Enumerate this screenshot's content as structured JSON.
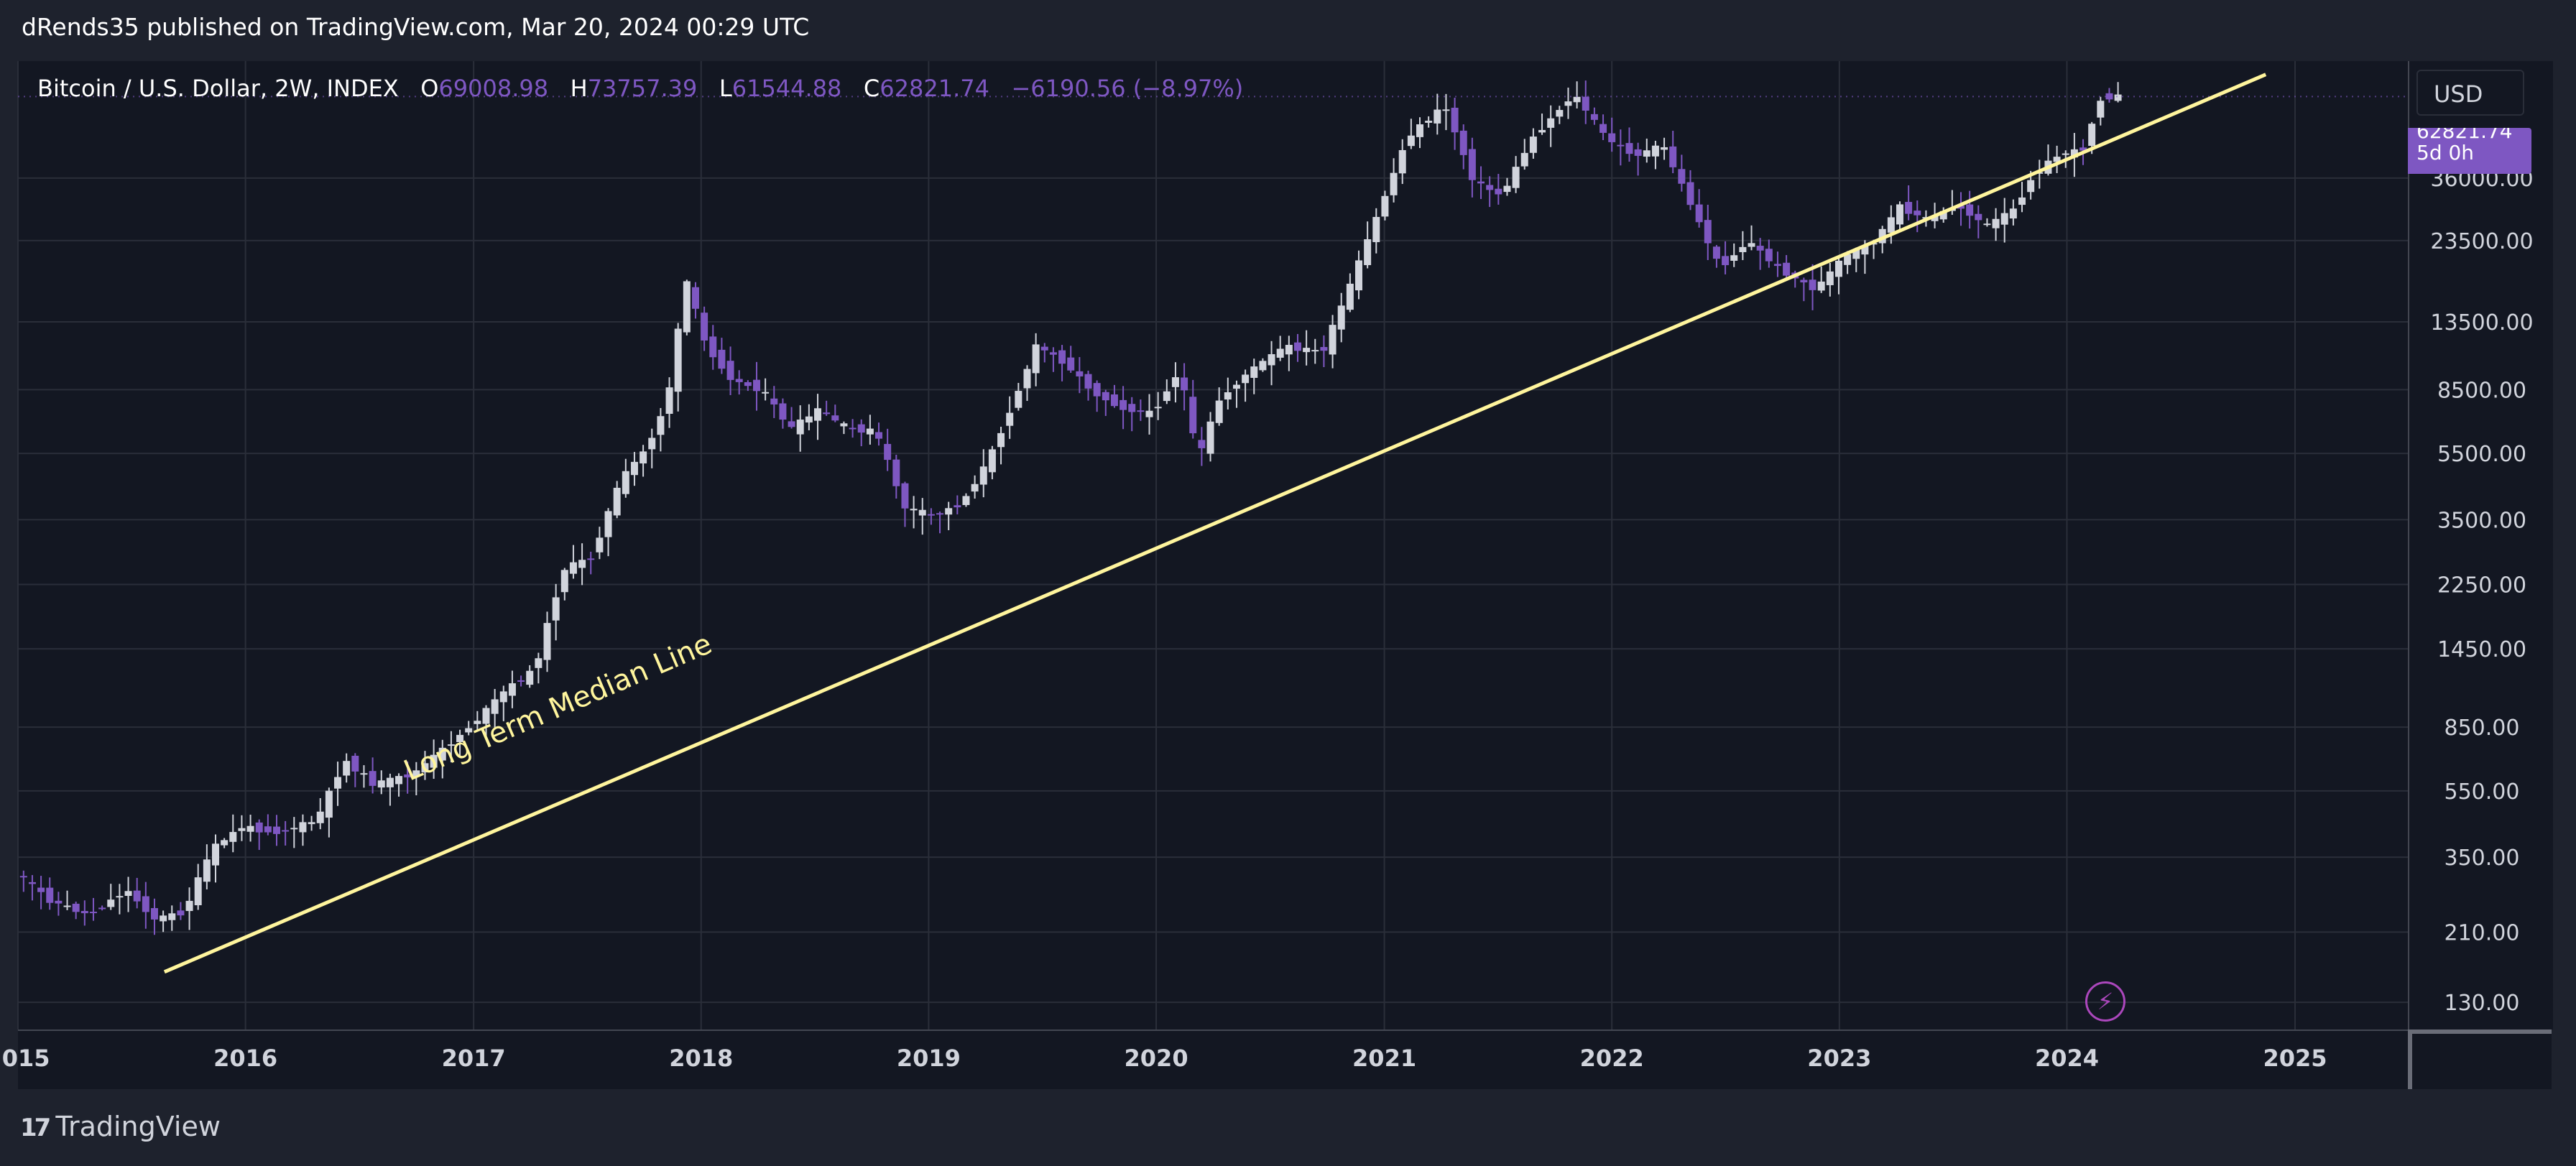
{
  "header": {
    "publisher": "dRends35 published on TradingView.com, Mar 20, 2024 00:29 UTC"
  },
  "legend": {
    "symbol": "Bitcoin / U.S. Dollar, 2W, INDEX",
    "o_label": "O",
    "o_value": "69008.98",
    "h_label": "H",
    "h_value": "73757.39",
    "l_label": "L",
    "l_value": "61544.88",
    "c_label": "C",
    "c_value": "62821.74",
    "change": "−6190.56 (−8.97%)"
  },
  "price_axis": {
    "currency": "USD",
    "current_price": "62821.74",
    "countdown": "5d 0h"
  },
  "footer": {
    "brand": "TradingView",
    "brand_mark": "17"
  },
  "colors": {
    "background": "#131722",
    "panel": "#1e222d",
    "grid": "#2a2e39",
    "up_candle": "#d1d4dc",
    "down_candle": "#7e57c2",
    "median_line": "#fff59d",
    "price_tag": "#7e57c2"
  },
  "icons": {
    "alert": "lightning-bolt-icon"
  },
  "chart_data": {
    "type": "candlestick",
    "title": "Bitcoin / U.S. Dollar, 2W, INDEX",
    "y_scale": "log",
    "y_ticks": [
      130,
      210,
      350,
      550,
      850,
      1450,
      2250,
      3500,
      5500,
      8500,
      13500,
      23500,
      36000
    ],
    "y_tick_labels": [
      "130.00",
      "210.00",
      "350.00",
      "550.00",
      "850.00",
      "1450.00",
      "2250.00",
      "3500.00",
      "5500.00",
      "8500.00",
      "13500.00",
      "23500.00",
      "36000.00"
    ],
    "x_ticks": [
      "2015",
      "2016",
      "2017",
      "2018",
      "2019",
      "2020",
      "2021",
      "2022",
      "2023",
      "2024",
      "2025"
    ],
    "x_range": [
      "2015-01-01",
      "2025-07-01"
    ],
    "grid": true,
    "series": [
      {
        "kind": "price",
        "points": [
          [
            "2015-01-01",
            320
          ],
          [
            "2015-03-01",
            260
          ],
          [
            "2015-05-01",
            236
          ],
          [
            "2015-07-01",
            280
          ],
          [
            "2015-08-15",
            230
          ],
          [
            "2015-10-01",
            240
          ],
          [
            "2015-11-15",
            370
          ],
          [
            "2016-01-01",
            430
          ],
          [
            "2016-03-01",
            415
          ],
          [
            "2016-05-01",
            450
          ],
          [
            "2016-06-15",
            680
          ],
          [
            "2016-08-01",
            575
          ],
          [
            "2016-10-01",
            615
          ],
          [
            "2016-12-01",
            760
          ],
          [
            "2017-01-15",
            900
          ],
          [
            "2017-03-01",
            1100
          ],
          [
            "2017-04-15",
            1250
          ],
          [
            "2017-06-01",
            2500
          ],
          [
            "2017-07-15",
            2700
          ],
          [
            "2017-09-01",
            4600
          ],
          [
            "2017-10-15",
            5800
          ],
          [
            "2017-11-15",
            8000
          ],
          [
            "2017-12-15",
            18000
          ],
          [
            "2018-01-15",
            11500
          ],
          [
            "2018-03-01",
            9000
          ],
          [
            "2018-04-15",
            8500
          ],
          [
            "2018-06-01",
            6500
          ],
          [
            "2018-07-15",
            7400
          ],
          [
            "2018-09-01",
            6500
          ],
          [
            "2018-10-15",
            6400
          ],
          [
            "2018-12-01",
            3800
          ],
          [
            "2019-01-15",
            3600
          ],
          [
            "2019-03-01",
            3900
          ],
          [
            "2019-04-15",
            5300
          ],
          [
            "2019-06-01",
            8500
          ],
          [
            "2019-06-30",
            11500
          ],
          [
            "2019-08-15",
            10200
          ],
          [
            "2019-10-01",
            8300
          ],
          [
            "2019-11-15",
            7500
          ],
          [
            "2020-01-01",
            7200
          ],
          [
            "2020-02-15",
            9800
          ],
          [
            "2020-03-15",
            5200
          ],
          [
            "2020-04-15",
            7800
          ],
          [
            "2020-06-01",
            9500
          ],
          [
            "2020-08-01",
            11400
          ],
          [
            "2020-10-01",
            11000
          ],
          [
            "2020-11-15",
            17500
          ],
          [
            "2020-12-31",
            29000
          ],
          [
            "2021-02-15",
            48000
          ],
          [
            "2021-04-15",
            59000
          ],
          [
            "2021-06-01",
            35000
          ],
          [
            "2021-07-15",
            32000
          ],
          [
            "2021-09-01",
            47000
          ],
          [
            "2021-11-08",
            64000
          ],
          [
            "2021-12-31",
            47000
          ],
          [
            "2022-02-15",
            42000
          ],
          [
            "2022-03-31",
            45000
          ],
          [
            "2022-05-15",
            30000
          ],
          [
            "2022-06-30",
            19500
          ],
          [
            "2022-08-15",
            23500
          ],
          [
            "2022-10-01",
            19500
          ],
          [
            "2022-11-30",
            16800
          ],
          [
            "2023-01-15",
            21000
          ],
          [
            "2023-03-01",
            23000
          ],
          [
            "2023-04-15",
            29500
          ],
          [
            "2023-06-01",
            27000
          ],
          [
            "2023-07-15",
            30000
          ],
          [
            "2023-09-01",
            26000
          ],
          [
            "2023-10-15",
            29000
          ],
          [
            "2023-11-15",
            37000
          ],
          [
            "2024-01-01",
            43000
          ],
          [
            "2024-02-01",
            43000
          ],
          [
            "2024-03-01",
            62000
          ],
          [
            "2024-03-20",
            62821.74
          ]
        ]
      },
      {
        "kind": "trendline",
        "name": "Long Term Median Line",
        "points": [
          [
            "2015-08-24",
            160
          ],
          [
            "2024-11-15",
            73000
          ]
        ]
      }
    ]
  }
}
